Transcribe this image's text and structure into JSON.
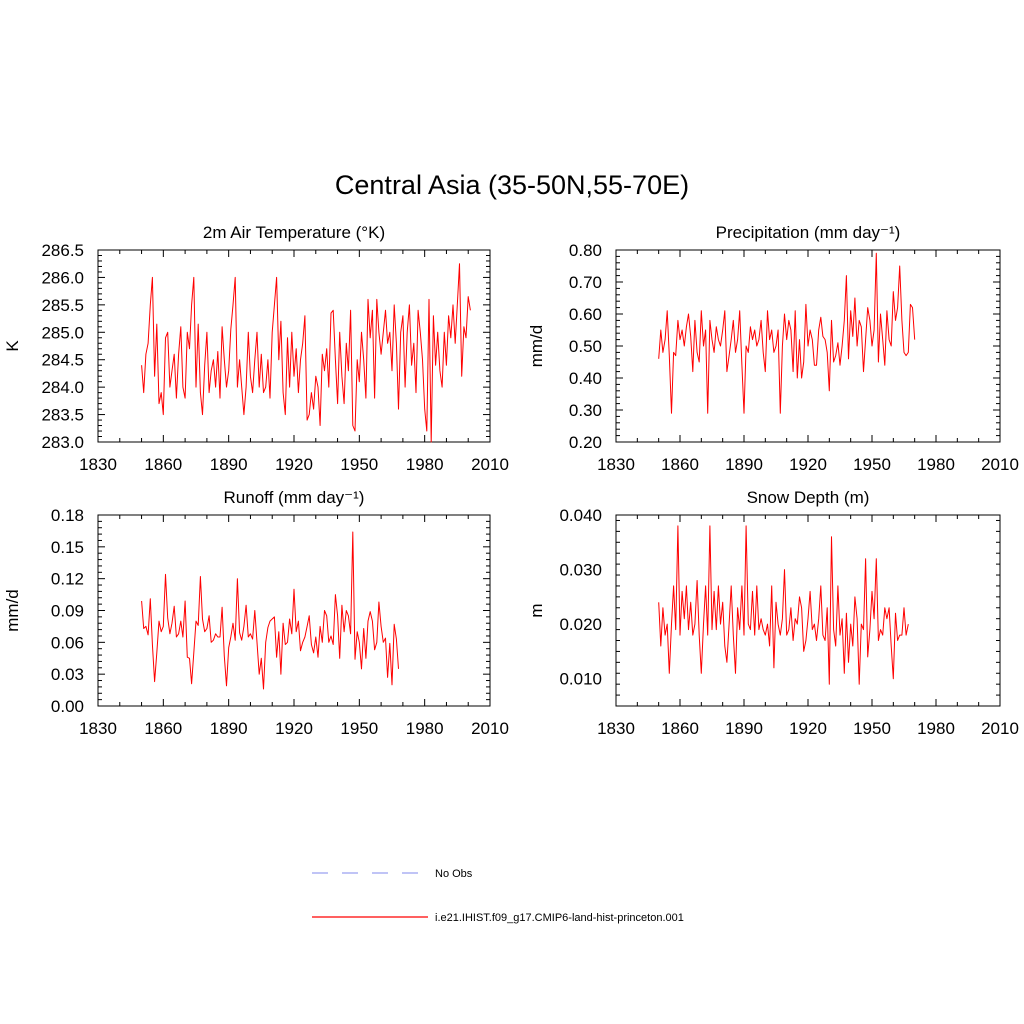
{
  "figure": {
    "title": "Central Asia (35-50N,55-70E)"
  },
  "legend": [
    {
      "label": "No Obs",
      "color": "#9aa0f0",
      "style": "dashed"
    },
    {
      "label": "i.e21.IHIST.f09_g17.CMIP6-land-hist-princeton.001",
      "color": "#ff0000",
      "style": "solid"
    }
  ],
  "chart_data": [
    {
      "type": "line",
      "title": "2m Air Temperature (°K)",
      "ylabel": "K",
      "xlabel": "",
      "xlim": [
        1830,
        2010
      ],
      "ylim": [
        283.0,
        286.5
      ],
      "xticks": [
        "1830",
        "1860",
        "1890",
        "1920",
        "1950",
        "1980",
        "2010"
      ],
      "yticks": [
        "283.0",
        "283.5",
        "284.0",
        "284.5",
        "285.0",
        "285.5",
        "286.0",
        "286.5"
      ],
      "grid": false,
      "series": [
        {
          "name": "i.e21.IHIST.f09_g17.CMIP6-land-hist-princeton.001",
          "color": "#ff0000",
          "x_start": 1850,
          "values": [
            284.4,
            283.9,
            284.6,
            284.8,
            285.5,
            286.0,
            284.2,
            285.15,
            283.7,
            283.9,
            283.5,
            284.9,
            285.0,
            284.0,
            284.3,
            284.6,
            283.8,
            284.6,
            285.1,
            284.0,
            283.8,
            285.0,
            284.7,
            285.5,
            286.0,
            284.0,
            285.15,
            283.9,
            283.5,
            284.4,
            285.0,
            283.9,
            284.3,
            284.5,
            284.0,
            284.65,
            283.8,
            285.1,
            284.5,
            284.0,
            284.3,
            285.05,
            285.5,
            286.0,
            284.0,
            284.5,
            284.0,
            283.5,
            284.0,
            285.0,
            284.2,
            283.9,
            284.5,
            285.0,
            284.0,
            284.6,
            283.9,
            284.0,
            284.5,
            283.8,
            285.0,
            285.5,
            286.0,
            284.5,
            285.2,
            283.9,
            283.5,
            284.9,
            284.0,
            285.0,
            284.2,
            284.7,
            283.9,
            284.5,
            284.8,
            285.3,
            283.4,
            283.5,
            283.9,
            283.6,
            284.2,
            284.0,
            283.3,
            284.6,
            284.3,
            284.7,
            284.0,
            285.35,
            285.4,
            284.5,
            283.7,
            285.0,
            284.2,
            283.7,
            284.8,
            284.3,
            285.4,
            283.3,
            283.2,
            284.5,
            284.1,
            285.0,
            284.5,
            283.8,
            285.6,
            284.9,
            285.4,
            283.8,
            285.6,
            285.0,
            284.6,
            285.0,
            285.4,
            284.8,
            285.0,
            284.3,
            285.5,
            284.8,
            283.6,
            285.0,
            285.3,
            284.0,
            285.0,
            285.5,
            284.4,
            284.8,
            283.9,
            285.4,
            285.0,
            284.5,
            283.6,
            283.2,
            285.6,
            283.0,
            285.3,
            284.4,
            285.0,
            284.3,
            284.0,
            285.0,
            284.4,
            285.3,
            284.9,
            285.5,
            284.8,
            285.5,
            286.25,
            284.2,
            285.1,
            284.9,
            285.65,
            285.4
          ]
        }
      ]
    },
    {
      "type": "line",
      "title": "Precipitation (mm day⁻¹)",
      "ylabel": "mm/d",
      "xlabel": "",
      "xlim": [
        1830,
        2010
      ],
      "ylim": [
        0.2,
        0.8
      ],
      "xticks": [
        "1830",
        "1860",
        "1890",
        "1920",
        "1950",
        "1980",
        "2010"
      ],
      "yticks": [
        "0.20",
        "0.30",
        "0.40",
        "0.50",
        "0.60",
        "0.70",
        "0.80"
      ],
      "grid": false,
      "series": [
        {
          "name": "i.e21.IHIST.f09_g17.CMIP6-land-hist-princeton.001",
          "color": "#ff0000",
          "x_start": 1850,
          "values": [
            0.46,
            0.55,
            0.48,
            0.52,
            0.61,
            0.47,
            0.29,
            0.48,
            0.47,
            0.58,
            0.52,
            0.55,
            0.5,
            0.56,
            0.6,
            0.53,
            0.42,
            0.58,
            0.48,
            0.45,
            0.61,
            0.5,
            0.55,
            0.29,
            0.58,
            0.52,
            0.48,
            0.56,
            0.52,
            0.5,
            0.55,
            0.61,
            0.42,
            0.47,
            0.52,
            0.58,
            0.48,
            0.52,
            0.61,
            0.44,
            0.29,
            0.5,
            0.48,
            0.56,
            0.52,
            0.55,
            0.5,
            0.52,
            0.58,
            0.48,
            0.42,
            0.61,
            0.52,
            0.55,
            0.48,
            0.5,
            0.55,
            0.29,
            0.5,
            0.6,
            0.52,
            0.58,
            0.55,
            0.42,
            0.61,
            0.4,
            0.52,
            0.4,
            0.45,
            0.63,
            0.5,
            0.55,
            0.52,
            0.44,
            0.44,
            0.55,
            0.59,
            0.53,
            0.52,
            0.48,
            0.36,
            0.58,
            0.45,
            0.47,
            0.51,
            0.44,
            0.5,
            0.58,
            0.72,
            0.46,
            0.61,
            0.53,
            0.65,
            0.5,
            0.58,
            0.56,
            0.42,
            0.52,
            0.62,
            0.58,
            0.5,
            0.55,
            0.79,
            0.45,
            0.6,
            0.52,
            0.44,
            0.61,
            0.52,
            0.5,
            0.67,
            0.58,
            0.62,
            0.75,
            0.58,
            0.48,
            0.47,
            0.48,
            0.63,
            0.62,
            0.52
          ]
        }
      ]
    },
    {
      "type": "line",
      "title": "Runoff (mm day⁻¹)",
      "ylabel": "mm/d",
      "xlabel": "",
      "xlim": [
        1830,
        2010
      ],
      "ylim": [
        0.0,
        0.18
      ],
      "xticks": [
        "1830",
        "1860",
        "1890",
        "1920",
        "1950",
        "1980",
        "2010"
      ],
      "yticks": [
        "0.00",
        "0.03",
        "0.06",
        "0.09",
        "0.12",
        "0.15",
        "0.18"
      ],
      "grid": false,
      "series": [
        {
          "name": "i.e21.IHIST.f09_g17.CMIP6-land-hist-princeton.001",
          "color": "#ff0000",
          "x_start": 1850,
          "values": [
            0.099,
            0.073,
            0.075,
            0.067,
            0.101,
            0.058,
            0.023,
            0.05,
            0.08,
            0.07,
            0.075,
            0.124,
            0.083,
            0.068,
            0.078,
            0.094,
            0.065,
            0.068,
            0.08,
            0.065,
            0.099,
            0.046,
            0.045,
            0.021,
            0.05,
            0.08,
            0.076,
            0.122,
            0.082,
            0.07,
            0.073,
            0.085,
            0.06,
            0.062,
            0.068,
            0.065,
            0.065,
            0.093,
            0.047,
            0.019,
            0.055,
            0.065,
            0.078,
            0.062,
            0.12,
            0.069,
            0.062,
            0.075,
            0.095,
            0.065,
            0.068,
            0.063,
            0.09,
            0.06,
            0.03,
            0.045,
            0.016,
            0.06,
            0.074,
            0.08,
            0.082,
            0.084,
            0.046,
            0.07,
            0.03,
            0.078,
            0.058,
            0.06,
            0.082,
            0.068,
            0.11,
            0.07,
            0.08,
            0.052,
            0.06,
            0.065,
            0.075,
            0.085,
            0.058,
            0.05,
            0.065,
            0.046,
            0.075,
            0.06,
            0.09,
            0.085,
            0.06,
            0.066,
            0.058,
            0.105,
            0.085,
            0.045,
            0.095,
            0.07,
            0.09,
            0.085,
            0.068,
            0.164,
            0.044,
            0.07,
            0.06,
            0.035,
            0.073,
            0.045,
            0.08,
            0.089,
            0.08,
            0.053,
            0.06,
            0.098,
            0.075,
            0.06,
            0.064,
            0.027,
            0.059,
            0.02,
            0.077,
            0.063,
            0.035
          ]
        }
      ]
    },
    {
      "type": "line",
      "title": "Snow Depth (m)",
      "ylabel": "m",
      "xlabel": "",
      "xlim": [
        1830,
        2010
      ],
      "ylim": [
        0.005,
        0.04
      ],
      "xticks": [
        "1830",
        "1860",
        "1890",
        "1920",
        "1950",
        "1980",
        "2010"
      ],
      "yticks": [
        "0.010",
        "0.020",
        "0.030",
        "0.040"
      ],
      "grid": false,
      "series": [
        {
          "name": "i.e21.IHIST.f09_g17.CMIP6-land-hist-princeton.001",
          "color": "#ff0000",
          "x_start": 1850,
          "values": [
            0.024,
            0.016,
            0.023,
            0.018,
            0.02,
            0.011,
            0.02,
            0.027,
            0.019,
            0.038,
            0.018,
            0.026,
            0.021,
            0.027,
            0.019,
            0.024,
            0.018,
            0.02,
            0.028,
            0.018,
            0.011,
            0.02,
            0.027,
            0.018,
            0.038,
            0.019,
            0.026,
            0.019,
            0.027,
            0.02,
            0.024,
            0.016,
            0.013,
            0.02,
            0.027,
            0.018,
            0.011,
            0.023,
            0.019,
            0.027,
            0.018,
            0.038,
            0.02,
            0.019,
            0.026,
            0.018,
            0.027,
            0.019,
            0.021,
            0.019,
            0.018,
            0.02,
            0.016,
            0.027,
            0.012,
            0.024,
            0.02,
            0.018,
            0.021,
            0.03,
            0.018,
            0.019,
            0.023,
            0.017,
            0.021,
            0.02,
            0.025,
            0.023,
            0.015,
            0.017,
            0.021,
            0.026,
            0.019,
            0.02,
            0.017,
            0.021,
            0.027,
            0.018,
            0.017,
            0.023,
            0.009,
            0.036,
            0.019,
            0.016,
            0.027,
            0.018,
            0.021,
            0.011,
            0.022,
            0.013,
            0.02,
            0.016,
            0.025,
            0.021,
            0.009,
            0.02,
            0.019,
            0.032,
            0.014,
            0.019,
            0.026,
            0.021,
            0.032,
            0.017,
            0.019,
            0.018,
            0.023,
            0.021,
            0.023,
            0.016,
            0.01,
            0.022,
            0.017,
            0.018,
            0.018,
            0.023,
            0.018,
            0.02
          ]
        }
      ]
    }
  ]
}
